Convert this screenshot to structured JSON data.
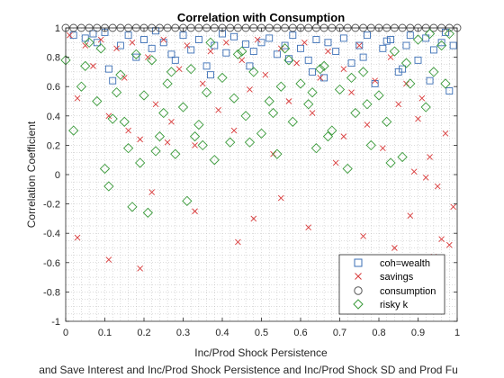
{
  "chart_data": {
    "type": "scatter",
    "title": "Correlation with Consumption",
    "xlabel": "Inc/Prod Shock Persistence",
    "xlabel2": "and Save Interest and Inc/Prod Shock Persistence and Inc/Prod Shock SD and Prod Fu",
    "ylabel": "Correlation Coefficient",
    "xlim": [
      0,
      1
    ],
    "ylim": [
      -1,
      1
    ],
    "xticks": [
      0,
      0.1,
      0.2,
      0.3,
      0.4,
      0.5,
      0.6,
      0.7,
      0.8,
      0.9,
      1
    ],
    "yticks": [
      -1,
      -0.8,
      -0.6,
      -0.4,
      -0.2,
      0,
      0.2,
      0.4,
      0.6,
      0.8,
      1
    ],
    "xtick_labels": [
      "0",
      "0.1",
      "0.2",
      "0.3",
      "0.4",
      "0.5",
      "0.6",
      "0.7",
      "0.8",
      "0.9",
      "1"
    ],
    "ytick_labels": [
      "-1",
      "-0.8",
      "-0.6",
      "-0.4",
      "-0.2",
      "0",
      "0.2",
      "0.4",
      "0.6",
      "0.8",
      "1"
    ],
    "grid": "minor dotted",
    "legend_placement": "bottom-right",
    "legend": [
      "coh=wealth",
      "savings",
      "consumption",
      "risky k"
    ],
    "colors": {
      "coh=wealth": "#3b6fb6",
      "savings": "#d83a3a",
      "consumption": "#555555",
      "risky k": "#3a9a3a"
    },
    "series": [
      {
        "name": "coh=wealth",
        "marker": "square",
        "x": [
          0.02,
          0.05,
          0.08,
          0.1,
          0.11,
          0.14,
          0.16,
          0.18,
          0.2,
          0.22,
          0.23,
          0.25,
          0.28,
          0.3,
          0.32,
          0.34,
          0.36,
          0.38,
          0.4,
          0.43,
          0.46,
          0.48,
          0.5,
          0.52,
          0.54,
          0.56,
          0.58,
          0.6,
          0.62,
          0.64,
          0.67,
          0.69,
          0.71,
          0.73,
          0.75,
          0.77,
          0.79,
          0.81,
          0.83,
          0.85,
          0.87,
          0.88,
          0.9,
          0.92,
          0.94,
          0.96,
          0.97,
          0.98,
          0.12,
          0.27,
          0.37,
          0.47,
          0.57,
          0.66,
          0.76,
          0.86,
          0.93,
          0.99,
          0.07,
          0.41,
          0.63,
          0.82
        ],
        "y": [
          0.95,
          0.93,
          0.9,
          0.97,
          0.72,
          0.88,
          0.95,
          0.8,
          0.92,
          0.86,
          0.98,
          0.9,
          0.78,
          0.95,
          0.85,
          0.92,
          0.74,
          0.88,
          0.96,
          0.94,
          0.89,
          0.84,
          0.9,
          0.93,
          0.82,
          0.88,
          0.95,
          0.86,
          0.78,
          0.92,
          0.9,
          0.84,
          0.93,
          0.76,
          0.88,
          0.95,
          0.62,
          0.86,
          0.92,
          0.7,
          0.88,
          0.95,
          0.78,
          0.93,
          0.85,
          0.9,
          0.97,
          0.57,
          0.64,
          0.82,
          0.68,
          0.74,
          0.79,
          0.66,
          0.8,
          0.72,
          0.64,
          0.88,
          0.96,
          0.83,
          0.7,
          0.91
        ]
      },
      {
        "name": "savings",
        "marker": "x",
        "x": [
          0.01,
          0.03,
          0.05,
          0.07,
          0.09,
          0.11,
          0.13,
          0.15,
          0.17,
          0.19,
          0.21,
          0.23,
          0.25,
          0.27,
          0.29,
          0.31,
          0.33,
          0.35,
          0.37,
          0.39,
          0.41,
          0.43,
          0.45,
          0.47,
          0.49,
          0.51,
          0.53,
          0.55,
          0.57,
          0.59,
          0.61,
          0.63,
          0.65,
          0.67,
          0.69,
          0.71,
          0.73,
          0.75,
          0.77,
          0.79,
          0.81,
          0.83,
          0.85,
          0.87,
          0.89,
          0.91,
          0.93,
          0.95,
          0.97,
          0.99,
          0.03,
          0.11,
          0.19,
          0.22,
          0.33,
          0.44,
          0.55,
          0.62,
          0.71,
          0.76,
          0.84,
          0.88,
          0.92,
          0.96,
          0.98,
          0.94,
          0.9,
          0.16,
          0.26,
          0.48
        ],
        "y": [
          0.95,
          0.52,
          0.88,
          0.74,
          0.92,
          0.4,
          0.86,
          0.66,
          0.9,
          0.24,
          0.8,
          0.48,
          0.92,
          0.36,
          0.72,
          0.88,
          0.2,
          0.62,
          0.84,
          0.44,
          0.9,
          0.3,
          0.78,
          0.58,
          0.92,
          0.68,
          0.14,
          0.86,
          0.5,
          0.76,
          0.9,
          0.42,
          0.66,
          0.84,
          0.08,
          0.72,
          0.56,
          0.88,
          0.34,
          0.64,
          0.18,
          0.8,
          0.48,
          0.62,
          0.02,
          0.52,
          0.12,
          -0.08,
          0.28,
          -0.22,
          -0.43,
          -0.58,
          -0.64,
          -0.12,
          -0.25,
          -0.46,
          -0.16,
          -0.36,
          0.26,
          -0.42,
          -0.5,
          -0.28,
          -0.02,
          -0.44,
          -0.48,
          -0.56,
          0.38,
          0.3,
          0.22,
          -0.3
        ]
      },
      {
        "name": "consumption",
        "marker": "circle",
        "x": [
          0.0,
          0.02,
          0.04,
          0.06,
          0.08,
          0.1,
          0.12,
          0.14,
          0.16,
          0.18,
          0.2,
          0.22,
          0.24,
          0.26,
          0.28,
          0.3,
          0.32,
          0.34,
          0.36,
          0.38,
          0.4,
          0.42,
          0.44,
          0.46,
          0.48,
          0.5,
          0.52,
          0.54,
          0.56,
          0.58,
          0.6,
          0.62,
          0.64,
          0.66,
          0.68,
          0.7,
          0.72,
          0.74,
          0.76,
          0.78,
          0.8,
          0.82,
          0.84,
          0.86,
          0.88,
          0.9,
          0.92,
          0.94,
          0.96,
          0.98,
          1.0
        ],
        "y": [
          1,
          1,
          1,
          1,
          1,
          1,
          1,
          1,
          1,
          1,
          1,
          1,
          1,
          1,
          1,
          1,
          1,
          1,
          1,
          1,
          1,
          1,
          1,
          1,
          1,
          1,
          1,
          1,
          1,
          1,
          1,
          1,
          1,
          1,
          1,
          1,
          1,
          1,
          1,
          1,
          1,
          1,
          1,
          1,
          1,
          1,
          1,
          1,
          1,
          1,
          1
        ]
      },
      {
        "name": "risky k",
        "marker": "diamond",
        "x": [
          0.0,
          0.02,
          0.04,
          0.06,
          0.08,
          0.1,
          0.11,
          0.12,
          0.14,
          0.16,
          0.17,
          0.18,
          0.2,
          0.21,
          0.22,
          0.24,
          0.26,
          0.28,
          0.3,
          0.31,
          0.32,
          0.34,
          0.36,
          0.38,
          0.4,
          0.42,
          0.44,
          0.46,
          0.48,
          0.5,
          0.52,
          0.54,
          0.56,
          0.58,
          0.6,
          0.62,
          0.64,
          0.66,
          0.68,
          0.7,
          0.72,
          0.74,
          0.76,
          0.78,
          0.8,
          0.82,
          0.84,
          0.86,
          0.88,
          0.9,
          0.92,
          0.94,
          0.96,
          0.98,
          0.05,
          0.09,
          0.13,
          0.19,
          0.23,
          0.27,
          0.33,
          0.37,
          0.43,
          0.47,
          0.53,
          0.57,
          0.63,
          0.67,
          0.73,
          0.77,
          0.83,
          0.87,
          0.93,
          0.97,
          0.15,
          0.25,
          0.35,
          0.45,
          0.55,
          0.65
        ],
        "y": [
          0.78,
          0.3,
          0.6,
          0.9,
          0.5,
          0.04,
          -0.08,
          0.38,
          0.68,
          0.18,
          -0.22,
          0.82,
          0.54,
          -0.26,
          0.78,
          0.26,
          0.62,
          0.14,
          0.46,
          -0.18,
          0.72,
          0.34,
          0.56,
          0.1,
          0.66,
          0.22,
          0.82,
          0.4,
          0.7,
          0.28,
          0.5,
          0.14,
          0.86,
          0.36,
          0.62,
          0.48,
          0.18,
          0.74,
          0.3,
          0.58,
          0.04,
          0.42,
          0.7,
          0.2,
          0.54,
          0.36,
          0.84,
          0.12,
          0.62,
          0.92,
          0.46,
          0.7,
          0.88,
          0.96,
          0.74,
          0.86,
          0.56,
          0.08,
          0.16,
          0.7,
          0.26,
          0.9,
          0.52,
          0.22,
          0.42,
          0.78,
          0.56,
          0.26,
          0.66,
          0.48,
          0.08,
          0.76,
          0.96,
          0.62,
          0.36,
          0.42,
          0.2,
          0.84,
          0.6,
          0.72
        ]
      }
    ]
  }
}
